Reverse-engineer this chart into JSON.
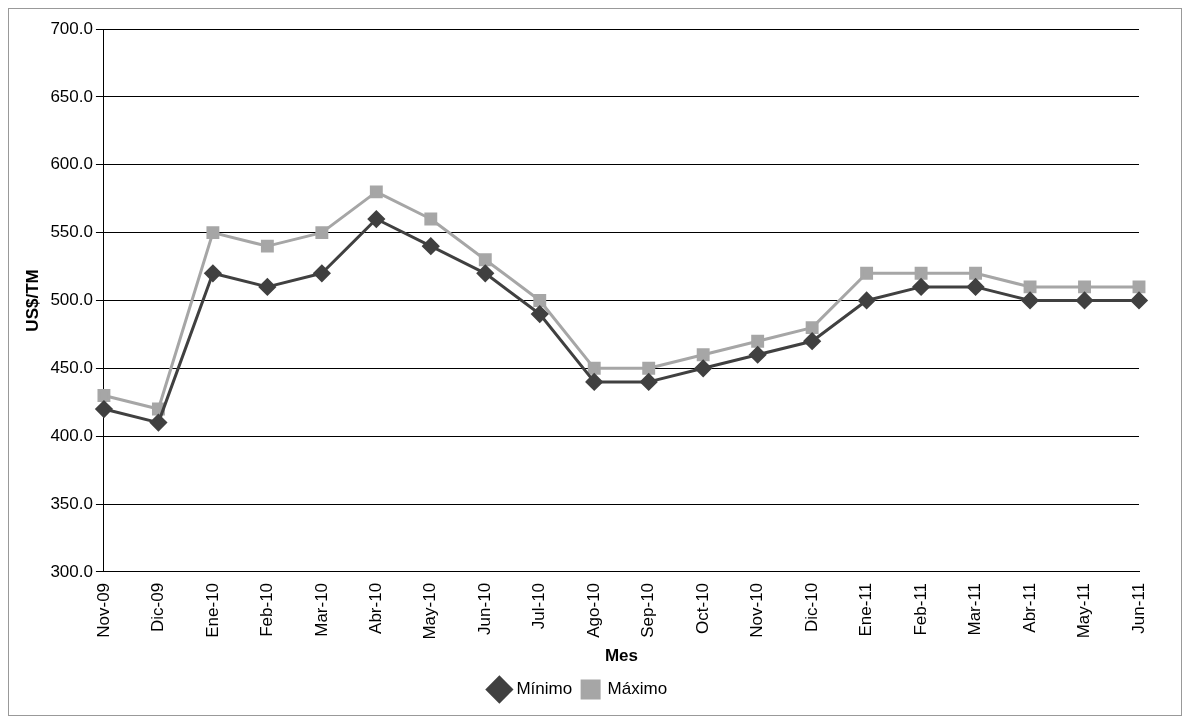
{
  "chart_data": {
    "type": "line",
    "xlabel": "Mes",
    "ylabel": "US$/TM",
    "categories": [
      "Nov-09",
      "Dic-09",
      "Ene-10",
      "Feb-10",
      "Mar-10",
      "Abr-10",
      "May-10",
      "Jun-10",
      "Jul-10",
      "Ago-10",
      "Sep-10",
      "Oct-10",
      "Nov-10",
      "Dic-10",
      "Ene-11",
      "Feb-11",
      "Mar-11",
      "Abr-11",
      "May-11",
      "Jun-11"
    ],
    "series": [
      {
        "name": "Mínimo",
        "color": "#404040",
        "marker": "diamond",
        "values": [
          420,
          410,
          520,
          510,
          520,
          560,
          540,
          520,
          490,
          440,
          440,
          450,
          460,
          470,
          500,
          510,
          510,
          500,
          500,
          500
        ]
      },
      {
        "name": "Máximo",
        "color": "#a6a6a6",
        "marker": "square",
        "values": [
          430,
          420,
          550,
          540,
          550,
          580,
          560,
          530,
          500,
          450,
          450,
          460,
          470,
          480,
          520,
          520,
          520,
          510,
          510,
          510
        ]
      }
    ],
    "ylim": [
      300,
      700
    ],
    "yticks": [
      {
        "value": 300,
        "label": "300.0"
      },
      {
        "value": 350,
        "label": "350.0"
      },
      {
        "value": 400,
        "label": "400.0"
      },
      {
        "value": 450,
        "label": "450.0"
      },
      {
        "value": 500,
        "label": "500.0"
      },
      {
        "value": 550,
        "label": "550.0"
      },
      {
        "value": 600,
        "label": "600.0"
      },
      {
        "value": 650,
        "label": "650.0"
      },
      {
        "value": 700,
        "label": "700.0"
      }
    ],
    "grid": "y",
    "legend": "bottom",
    "line_style": "solid"
  }
}
